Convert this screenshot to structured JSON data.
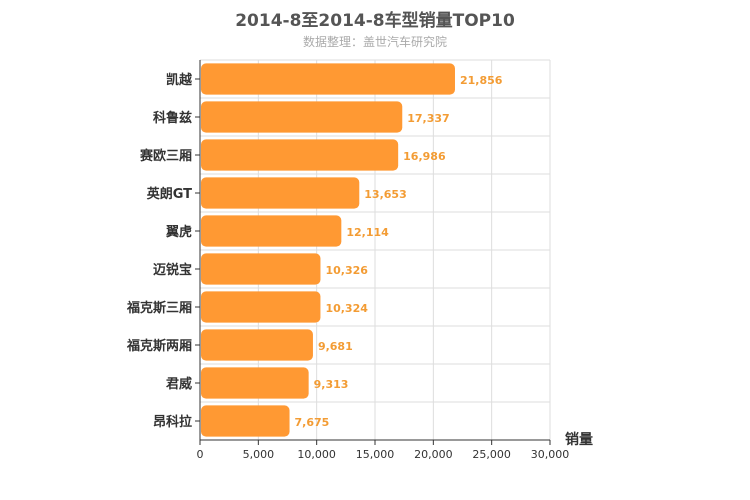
{
  "chart_data": {
    "type": "bar",
    "orientation": "horizontal",
    "title": "2014-8至2014-8车型销量TOP10",
    "subtitle": "数据整理：盖世汽车研究院",
    "categories": [
      "凯越",
      "科鲁兹",
      "赛欧三厢",
      "英朗GT",
      "翼虎",
      "迈锐宝",
      "福克斯三厢",
      "福克斯两厢",
      "君威",
      "昂科拉"
    ],
    "values": [
      21856,
      17337,
      16986,
      13653,
      12114,
      10326,
      10324,
      9681,
      9313,
      7675
    ],
    "data_labels": [
      "21,856",
      "17,337",
      "16,986",
      "13,653",
      "12,114",
      "10,326",
      "10,324",
      "9,681",
      "9,313",
      "7,675"
    ],
    "xlabel": "销量",
    "ylabel": "",
    "xlim": [
      0,
      30000
    ],
    "x_ticks": [
      0,
      5000,
      10000,
      15000,
      20000,
      25000,
      30000
    ],
    "x_tick_labels": [
      "0",
      "5,000",
      "10,000",
      "15,000",
      "20,000",
      "25,000",
      "30,000"
    ],
    "grid": true,
    "legend": "none",
    "bar_color": "#ff9933",
    "label_color": "#f39c34"
  }
}
